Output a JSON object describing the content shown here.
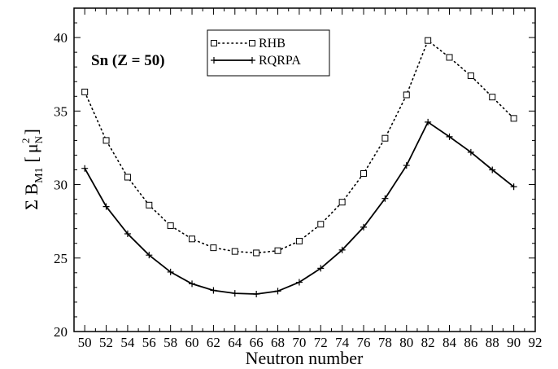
{
  "chart_data": {
    "type": "line",
    "xlabel": "Neutron number",
    "ylabel": {
      "base": "Σ B",
      "sub": "M1",
      "lbr": "[",
      "mu": "μ",
      "mu_sub": "N",
      "mu_sup": "2",
      "rbr": "]"
    },
    "xlim": [
      49,
      92
    ],
    "ylim": [
      20,
      42
    ],
    "xticks": [
      50,
      52,
      54,
      56,
      58,
      60,
      62,
      64,
      66,
      68,
      70,
      72,
      74,
      76,
      78,
      80,
      82,
      84,
      86,
      88,
      90,
      92
    ],
    "yticks": [
      20,
      25,
      30,
      35,
      40
    ],
    "grid": false,
    "legend_position": "top-center",
    "annotation": "Sn (Z = 50)",
    "x": [
      50,
      52,
      54,
      56,
      58,
      60,
      62,
      64,
      66,
      68,
      70,
      72,
      74,
      76,
      78,
      80,
      82,
      84,
      86,
      88,
      90
    ],
    "series": [
      {
        "name": "RHB",
        "style": "dotted",
        "marker": "square",
        "color": "#000000",
        "values": [
          36.3,
          33.0,
          30.5,
          28.6,
          27.2,
          26.3,
          25.7,
          25.45,
          25.35,
          25.5,
          26.15,
          27.3,
          28.8,
          30.75,
          33.15,
          36.1,
          39.8,
          38.65,
          37.4,
          35.95,
          34.5
        ]
      },
      {
        "name": "RQRPA",
        "style": "solid",
        "marker": "plus",
        "color": "#000000",
        "values": [
          31.1,
          28.5,
          26.65,
          25.2,
          24.05,
          23.25,
          22.8,
          22.6,
          22.55,
          22.75,
          23.35,
          24.3,
          25.55,
          27.1,
          29.05,
          31.3,
          34.25,
          33.25,
          32.2,
          31.0,
          29.85
        ]
      }
    ]
  }
}
